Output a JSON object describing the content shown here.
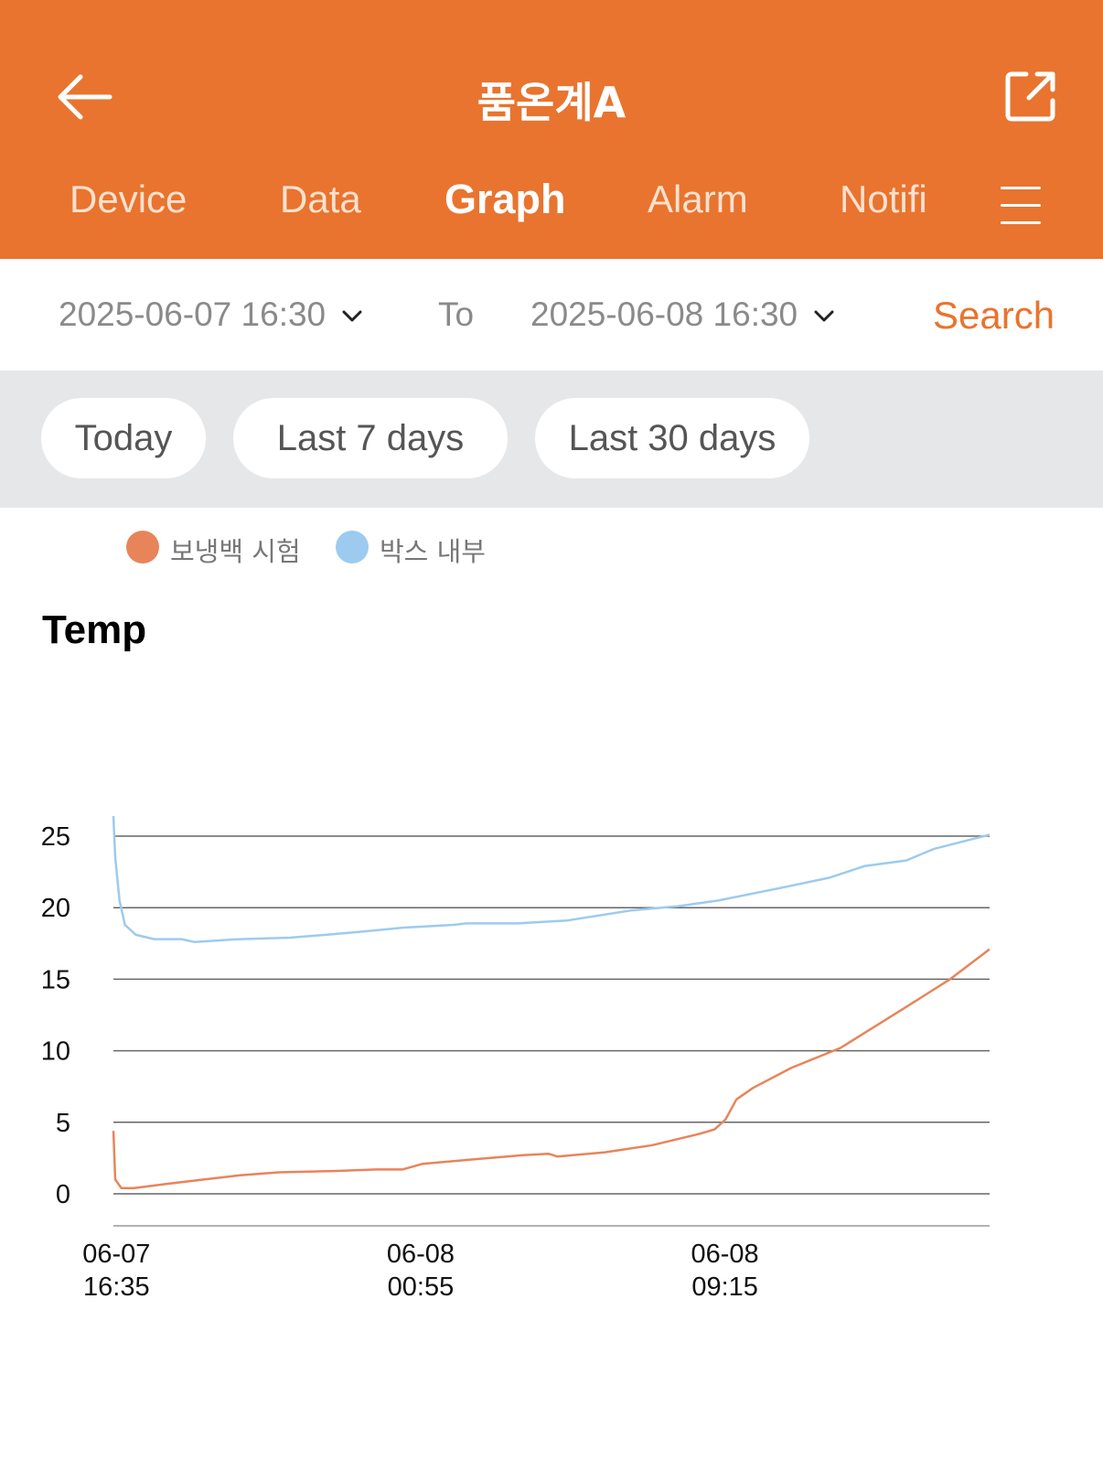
{
  "header": {
    "title": "품온계A",
    "back_icon": "arrow-left-icon",
    "share_icon": "external-link-icon",
    "menu_icon": "hamburger-menu-icon",
    "background": "#e8742f"
  },
  "tabs": [
    {
      "label": "Device",
      "active": false
    },
    {
      "label": "Data",
      "active": false
    },
    {
      "label": "Graph",
      "active": true
    },
    {
      "label": "Alarm",
      "active": false
    },
    {
      "label": "Notifi",
      "active": false
    }
  ],
  "range": {
    "from": "2025-06-07 16:30",
    "to_label": "To",
    "to": "2025-06-08 16:30",
    "search_label": "Search"
  },
  "quick_ranges": [
    "Today",
    "Last 7 days",
    "Last 30 days"
  ],
  "chart_data": {
    "type": "line",
    "title": "Temp",
    "xlabel": "",
    "ylabel": "",
    "ylim": [
      0,
      25
    ],
    "yticks": [
      0,
      5,
      10,
      15,
      20,
      25
    ],
    "grid": true,
    "legend": "top-left",
    "x_range": [
      "06-07 16:30",
      "06-08 16:30"
    ],
    "x_ticks": [
      {
        "x": "06-07 16:35",
        "line1": "06-07",
        "line2": "16:35"
      },
      {
        "x": "06-08 00:55",
        "line1": "06-08",
        "line2": "00:55"
      },
      {
        "x": "06-08 09:15",
        "line1": "06-08",
        "line2": "09:15"
      }
    ],
    "series": [
      {
        "name": "보냉백 시험",
        "color": "#e8845a",
        "points": [
          [
            "06-07 16:30",
            4.4
          ],
          [
            "06-07 16:33",
            1.0
          ],
          [
            "06-07 16:43",
            0.4
          ],
          [
            "06-07 17:04",
            0.4
          ],
          [
            "06-07 17:58",
            0.7
          ],
          [
            "06-07 18:58",
            1.0
          ],
          [
            "06-07 19:58",
            1.3
          ],
          [
            "06-07 21:02",
            1.5
          ],
          [
            "06-07 22:37",
            1.6
          ],
          [
            "06-07 23:42",
            1.7
          ],
          [
            "06-08 00:25",
            1.7
          ],
          [
            "06-08 00:58",
            2.1
          ],
          [
            "06-08 02:19",
            2.4
          ],
          [
            "06-08 03:43",
            2.7
          ],
          [
            "06-08 04:25",
            2.8
          ],
          [
            "06-08 04:40",
            2.6
          ],
          [
            "06-08 05:58",
            2.9
          ],
          [
            "06-08 07:16",
            3.4
          ],
          [
            "06-08 08:34",
            4.2
          ],
          [
            "06-08 08:58",
            4.5
          ],
          [
            "06-08 09:16",
            5.2
          ],
          [
            "06-08 09:34",
            6.6
          ],
          [
            "06-08 10:01",
            7.4
          ],
          [
            "06-08 11:04",
            8.8
          ],
          [
            "06-08 12:25",
            10.2
          ],
          [
            "06-08 14:07",
            12.9
          ],
          [
            "06-08 15:25",
            15.0
          ],
          [
            "06-08 16:30",
            17.1
          ]
        ]
      },
      {
        "name": "박스 내부",
        "color": "#9ccbef",
        "points": [
          [
            "06-07 16:30",
            26.4
          ],
          [
            "06-07 16:33",
            23.5
          ],
          [
            "06-07 16:40",
            20.5
          ],
          [
            "06-07 16:49",
            18.8
          ],
          [
            "06-07 17:07",
            18.1
          ],
          [
            "06-07 17:37",
            17.8
          ],
          [
            "06-07 18:22",
            17.8
          ],
          [
            "06-07 18:43",
            17.6
          ],
          [
            "06-07 19:58",
            17.8
          ],
          [
            "06-07 21:20",
            17.9
          ],
          [
            "06-07 22:19",
            18.1
          ],
          [
            "06-07 23:13",
            18.3
          ],
          [
            "06-08 00:25",
            18.6
          ],
          [
            "06-08 01:49",
            18.8
          ],
          [
            "06-08 02:10",
            18.9
          ],
          [
            "06-08 03:34",
            18.9
          ],
          [
            "06-08 04:55",
            19.1
          ],
          [
            "06-08 06:40",
            19.8
          ],
          [
            "06-08 07:58",
            20.1
          ],
          [
            "06-08 09:04",
            20.5
          ],
          [
            "06-08 10:49",
            21.4
          ],
          [
            "06-08 12:07",
            22.1
          ],
          [
            "06-08 13:04",
            22.9
          ],
          [
            "06-08 14:13",
            23.3
          ],
          [
            "06-08 14:58",
            24.1
          ],
          [
            "06-08 16:30",
            25.1
          ]
        ]
      }
    ]
  }
}
